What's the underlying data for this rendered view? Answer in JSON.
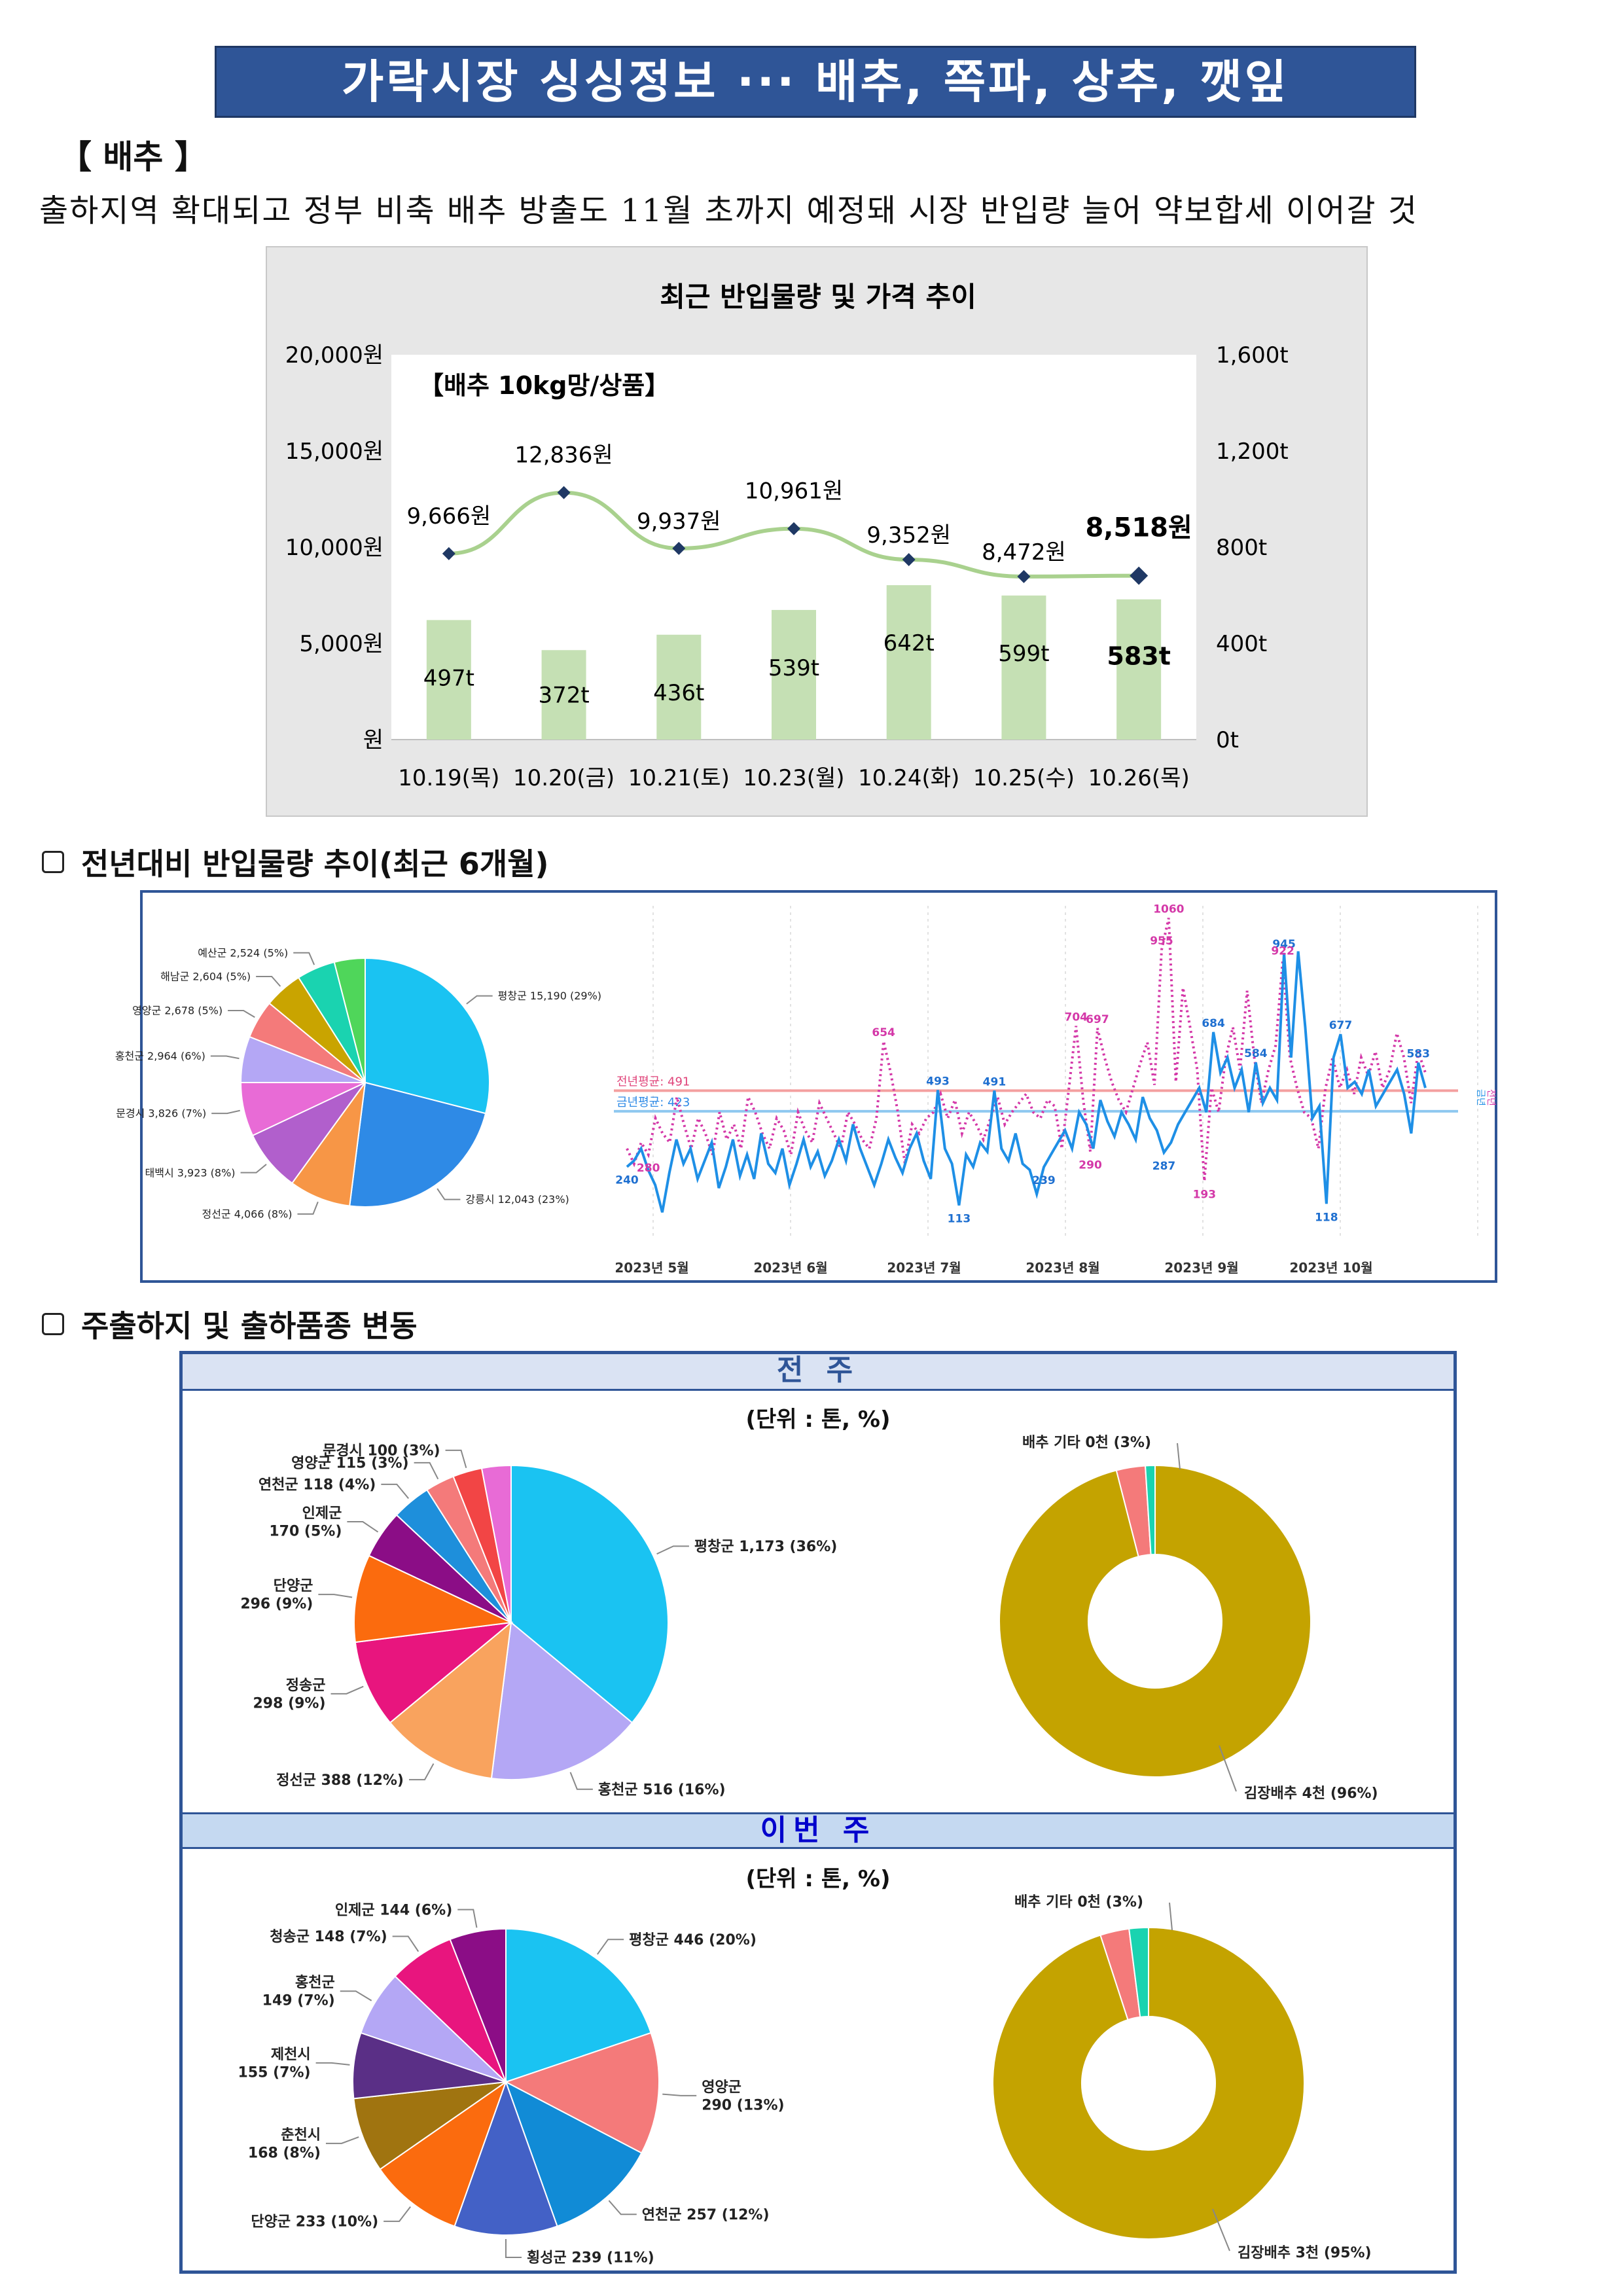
{
  "header": {
    "title": "가락시장 싱싱정보 ··· 배추, 쪽파, 상추, 깻잎"
  },
  "section": {
    "label": "【 배추 】"
  },
  "lead": "출하지역 확대되고 정부 비축 배추 방출도 11월 초까지 예정돼 시장 반입량 늘어 약보합세 이어갈 것",
  "chart1": {
    "title": "최근 반입물량 및 가격 추이",
    "inner_label": "【배추 10kg망/상품】",
    "left_ticks": [
      "20,000원",
      "15,000원",
      "10,000원",
      "5,000원",
      "원"
    ],
    "right_ticks": [
      "1,600t",
      "1,200t",
      "800t",
      "400t",
      "0t"
    ],
    "chart_data": {
      "type": "bar+line",
      "categories": [
        "10.19(목)",
        "10.20(금)",
        "10.21(토)",
        "10.23(월)",
        "10.24(화)",
        "10.25(수)",
        "10.26(목)"
      ],
      "bar_values": [
        497,
        372,
        436,
        539,
        642,
        599,
        583
      ],
      "bar_labels": [
        "497t",
        "372t",
        "436t",
        "539t",
        "642t",
        "599t",
        "583t"
      ],
      "line_values": [
        9666,
        12836,
        9937,
        10961,
        9352,
        8472,
        8518
      ],
      "line_labels": [
        "9,666원",
        "12,836원",
        "9,937원",
        "10,961원",
        "9,352원",
        "8,472원",
        "8,518원"
      ],
      "ylim_left": [
        0,
        20000
      ],
      "ylim_right": [
        0,
        1600
      ],
      "colors": {
        "bar": "#c5e0b4",
        "line": "#a9d18e",
        "marker": "#1f3864"
      }
    }
  },
  "sub1": {
    "label": "전년대비 반입물량 추이(최근 6개월)"
  },
  "pie6m": {
    "chart_data": {
      "type": "pie",
      "slices": [
        {
          "label": "평창군 15,190 (29%)",
          "value": 29,
          "color": "#1ac3f2"
        },
        {
          "label": "강릉시 12,043 (23%)",
          "value": 23,
          "color": "#2e8ae6"
        },
        {
          "label": "정선군 4,066 (8%)",
          "value": 8,
          "color": "#f79646"
        },
        {
          "label": "태백시 3,923 (8%)",
          "value": 8,
          "color": "#b15fcc"
        },
        {
          "label": "문경시 3,826 (7%)",
          "value": 7,
          "color": "#e86bd6"
        },
        {
          "label": "홍천군 2,964 (6%)",
          "value": 6,
          "color": "#b4a7f5"
        },
        {
          "label": "영양군 2,678 (5%)",
          "value": 5,
          "color": "#f47a7a"
        },
        {
          "label": "해남군 2,604 (5%)",
          "value": 5,
          "color": "#c9a400"
        },
        {
          "label": "예산군 2,524 (5%)",
          "value": 5,
          "color": "#1ad3b0"
        },
        {
          "label": "",
          "value": 4,
          "color": "#4fd65a"
        }
      ]
    }
  },
  "trend": {
    "x_labels": [
      "2023년 5월",
      "2023년 6월",
      "2023년 7월",
      "2023년 8월",
      "2023년 9월",
      "2023년 10월"
    ],
    "avg_prev": "전년평균: 491",
    "avg_curr": "금년평균: 423",
    "legend_curr": "금년",
    "legend_prev": "전년",
    "chart_data": {
      "type": "line",
      "avg_prev_value": 491,
      "avg_curr_value": 423,
      "ylim": [
        0,
        1100
      ],
      "current_series": [
        240,
        260,
        300,
        230,
        180,
        90,
        220,
        330,
        250,
        300,
        200,
        260,
        320,
        170,
        240,
        330,
        210,
        280,
        200,
        350,
        250,
        220,
        300,
        180,
        250,
        330,
        240,
        290,
        210,
        260,
        330,
        260,
        380,
        300,
        240,
        180,
        250,
        330,
        270,
        220,
        300,
        350,
        260,
        200,
        493,
        300,
        250,
        113,
        280,
        240,
        320,
        290,
        491,
        300,
        260,
        350,
        250,
        230,
        150,
        239,
        280,
        320,
        360,
        300,
        420,
        380,
        300,
        460,
        390,
        340,
        420,
        380,
        330,
        470,
        400,
        360,
        287,
        320,
        380,
        420,
        460,
        500,
        420,
        684,
        550,
        600,
        500,
        560,
        420,
        584,
        450,
        500,
        460,
        945,
        600,
        950,
        700,
        400,
        440,
        118,
        600,
        677,
        500,
        520,
        480,
        560,
        440,
        480,
        520,
        560,
        480,
        350,
        583,
        500
      ],
      "previous_series": [
        300,
        250,
        320,
        280,
        400,
        350,
        320,
        470,
        380,
        300,
        400,
        350,
        280,
        420,
        330,
        380,
        300,
        470,
        420,
        350,
        300,
        400,
        360,
        280,
        420,
        360,
        320,
        450,
        400,
        350,
        300,
        420,
        380,
        330,
        300,
        400,
        654,
        550,
        420,
        250,
        380,
        350,
        400,
        420,
        480,
        400,
        460,
        350,
        420,
        380,
        330,
        400,
        470,
        380,
        420,
        450,
        480,
        420,
        400,
        460,
        440,
        300,
        500,
        704,
        460,
        290,
        697,
        600,
        520,
        460,
        420,
        500,
        580,
        650,
        510,
        955,
        1060,
        520,
        830,
        700,
        560,
        193,
        500,
        420,
        600,
        700,
        560,
        820,
        600,
        450,
        560,
        640,
        922,
        600,
        500,
        420,
        400,
        300,
        500,
        600,
        500,
        560,
        480,
        600,
        540,
        620,
        500,
        560,
        680,
        600,
        450,
        620,
        550
      ],
      "point_labels": {
        "current": [
          "240",
          "493",
          "113",
          "491",
          "239",
          "287",
          "684",
          "945",
          "584",
          "118",
          "677",
          "583"
        ],
        "previous": [
          "654",
          "704",
          "697",
          "955",
          "1060",
          "922",
          "290",
          "280",
          "193"
        ]
      }
    }
  },
  "sub2": {
    "label": "주출하지 및 출하품종 변동"
  },
  "week_prev": {
    "band": "전 주",
    "unit": "(단위 : 톤, %)",
    "pie": {
      "chart_data": {
        "type": "pie",
        "slices": [
          {
            "label": "평창군 1,173 (36%)",
            "value": 36,
            "color": "#1ac3f2"
          },
          {
            "label": "홍천군 516 (16%)",
            "value": 16,
            "color": "#b4a7f5"
          },
          {
            "label": "정선군 388 (12%)",
            "value": 12,
            "color": "#f9a35e"
          },
          {
            "label": "정송군\n298 (9%)",
            "value": 9,
            "color": "#e8157e"
          },
          {
            "label": "단양군\n296 (9%)",
            "value": 9,
            "color": "#fb6b0e"
          },
          {
            "label": "인제군\n170 (5%)",
            "value": 5,
            "color": "#8b0d86"
          },
          {
            "label": "연천군 118 (4%)",
            "value": 4,
            "color": "#1e8fdb"
          },
          {
            "label": "영양군 115 (3%)",
            "value": 3,
            "color": "#f47a7a"
          },
          {
            "label": "문경시 100 (3%)",
            "value": 3,
            "color": "#f24545"
          },
          {
            "label": "",
            "value": 3,
            "color": "#e86bd6"
          }
        ]
      }
    },
    "donut": {
      "chart_data": {
        "type": "pie",
        "slices": [
          {
            "label": "김장배추 4천 (96%)",
            "value": 96,
            "color": "#c4a300"
          },
          {
            "label": "배추 기타 0천 (3%)",
            "value": 3,
            "color": "#f47a7a"
          },
          {
            "label": "",
            "value": 1,
            "color": "#1ad3b0"
          }
        ]
      }
    }
  },
  "week_curr": {
    "band": "이번 주",
    "unit": "(단위 : 톤, %)",
    "pie": {
      "chart_data": {
        "type": "pie",
        "slices": [
          {
            "label": "평창군 446 (20%)",
            "value": 20,
            "color": "#1ac3f2"
          },
          {
            "label": "영양군\n290 (13%)",
            "value": 13,
            "color": "#f47a7a"
          },
          {
            "label": "연천군 257 (12%)",
            "value": 12,
            "color": "#118bd6"
          },
          {
            "label": "횡성군 239 (11%)",
            "value": 11,
            "color": "#4361c6"
          },
          {
            "label": "단양군 233 (10%)",
            "value": 10,
            "color": "#fb6b0e"
          },
          {
            "label": "춘천시\n168 (8%)",
            "value": 8,
            "color": "#a07410"
          },
          {
            "label": "제천시\n155 (7%)",
            "value": 7,
            "color": "#5a2f86"
          },
          {
            "label": "홍천군\n149 (7%)",
            "value": 7,
            "color": "#b4a7f5"
          },
          {
            "label": "청송군 148 (7%)",
            "value": 7,
            "color": "#e8157e"
          },
          {
            "label": "인제군 144 (6%)",
            "value": 6,
            "color": "#8b0d86"
          }
        ]
      }
    },
    "donut": {
      "chart_data": {
        "type": "pie",
        "slices": [
          {
            "label": "김장배추 3천 (95%)",
            "value": 95,
            "color": "#c4a300"
          },
          {
            "label": "배추 기타 0천 (3%)",
            "value": 3,
            "color": "#f47a7a"
          },
          {
            "label": "",
            "value": 2,
            "color": "#1ad3b0"
          }
        ]
      }
    }
  }
}
